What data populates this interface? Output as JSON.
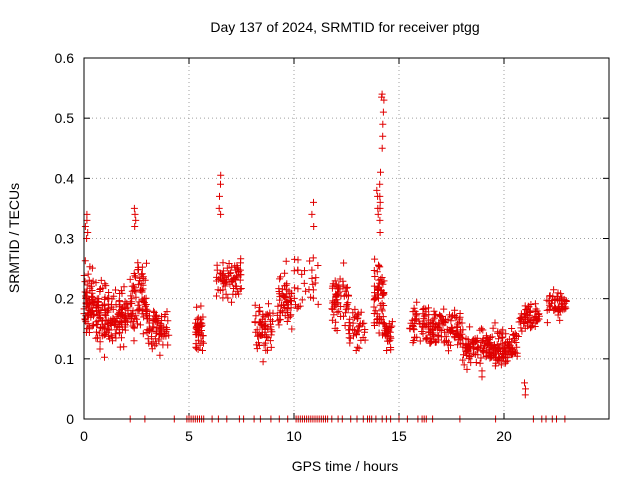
{
  "chart_data": {
    "type": "scatter",
    "title": "Day 137 of 2024, SRMTID for receiver ptgg",
    "xlabel": "GPS time / hours",
    "ylabel": "SRMTID / TECUs",
    "xlim": [
      0,
      25
    ],
    "ylim": [
      0,
      0.6
    ],
    "xticks": [
      0,
      5,
      10,
      15,
      20
    ],
    "yticks": [
      0,
      0.1,
      0.2,
      0.3,
      0.4,
      0.5,
      0.6
    ],
    "ytick_labels": [
      "0",
      "0.1",
      "0.2",
      "0.3",
      "0.4",
      "0.5",
      "0.6"
    ],
    "grid": true,
    "marker": "+",
    "color": "#e00000",
    "clusters": [
      {
        "x_range": [
          0.0,
          0.5
        ],
        "y_center": 0.19,
        "y_spread": 0.09,
        "count": 70
      },
      {
        "x_range": [
          0.5,
          1.3
        ],
        "y_center": 0.17,
        "y_spread": 0.08,
        "count": 80
      },
      {
        "x_range": [
          1.3,
          2.2
        ],
        "y_center": 0.17,
        "y_spread": 0.07,
        "count": 80
      },
      {
        "x_range": [
          2.2,
          3.0
        ],
        "y_center": 0.2,
        "y_spread": 0.09,
        "count": 80
      },
      {
        "x_range": [
          3.0,
          4.1
        ],
        "y_center": 0.15,
        "y_spread": 0.05,
        "count": 70
      },
      {
        "x_range": [
          5.3,
          5.7
        ],
        "y_center": 0.15,
        "y_spread": 0.06,
        "count": 45
      },
      {
        "x_range": [
          6.3,
          7.5
        ],
        "y_center": 0.23,
        "y_spread": 0.06,
        "count": 70
      },
      {
        "x_range": [
          8.1,
          9.0
        ],
        "y_center": 0.15,
        "y_spread": 0.06,
        "count": 60
      },
      {
        "x_range": [
          9.2,
          9.9
        ],
        "y_center": 0.2,
        "y_spread": 0.07,
        "count": 55
      },
      {
        "x_range": [
          10.0,
          11.2
        ],
        "y_center": 0.22,
        "y_spread": 0.07,
        "count": 30
      },
      {
        "x_range": [
          11.8,
          12.6
        ],
        "y_center": 0.2,
        "y_spread": 0.07,
        "count": 60
      },
      {
        "x_range": [
          12.6,
          13.4
        ],
        "y_center": 0.15,
        "y_spread": 0.06,
        "count": 40
      },
      {
        "x_range": [
          13.8,
          14.3
        ],
        "y_center": 0.2,
        "y_spread": 0.1,
        "count": 60
      },
      {
        "x_range": [
          14.3,
          14.7
        ],
        "y_center": 0.14,
        "y_spread": 0.05,
        "count": 30
      },
      {
        "x_range": [
          15.5,
          16.5
        ],
        "y_center": 0.16,
        "y_spread": 0.06,
        "count": 60
      },
      {
        "x_range": [
          16.5,
          18.0
        ],
        "y_center": 0.15,
        "y_spread": 0.05,
        "count": 100
      },
      {
        "x_range": [
          18.0,
          19.5
        ],
        "y_center": 0.12,
        "y_spread": 0.045,
        "count": 110
      },
      {
        "x_range": [
          19.5,
          20.7
        ],
        "y_center": 0.12,
        "y_spread": 0.045,
        "count": 100
      },
      {
        "x_range": [
          20.7,
          21.7
        ],
        "y_center": 0.17,
        "y_spread": 0.04,
        "count": 60
      },
      {
        "x_range": [
          22.0,
          23.0
        ],
        "y_center": 0.19,
        "y_spread": 0.04,
        "count": 50
      }
    ],
    "peaks": [
      {
        "x": 14.23,
        "y_values": [
          0.54,
          0.535,
          0.53,
          0.51,
          0.49,
          0.47,
          0.45
        ]
      },
      {
        "x": 14.1,
        "y_values": [
          0.41,
          0.39,
          0.37,
          0.36,
          0.35,
          0.33,
          0.31
        ]
      },
      {
        "x": 13.95,
        "y_values": [
          0.38,
          0.37,
          0.35,
          0.34
        ]
      },
      {
        "x": 6.45,
        "y_values": [
          0.405,
          0.39,
          0.37,
          0.35,
          0.34
        ]
      },
      {
        "x": 0.12,
        "y_values": [
          0.34,
          0.33,
          0.32,
          0.31,
          0.3
        ]
      },
      {
        "x": 2.45,
        "y_values": [
          0.35,
          0.34,
          0.33,
          0.32
        ]
      },
      {
        "x": 10.9,
        "y_values": [
          0.36,
          0.34,
          0.32
        ]
      },
      {
        "x": 21.0,
        "y_values": [
          0.04,
          0.05,
          0.06
        ]
      },
      {
        "x": 18.9,
        "y_values": [
          0.07,
          0.08
        ]
      }
    ],
    "zero_points": [
      2.2,
      2.9,
      4.3,
      4.9,
      5.0,
      5.1,
      5.2,
      5.3,
      5.4,
      5.5,
      5.6,
      5.7,
      6.1,
      6.4,
      6.8,
      7.4,
      7.6,
      8.1,
      8.4,
      8.9,
      9.3,
      9.7,
      10.1,
      10.2,
      10.3,
      10.4,
      10.5,
      10.6,
      10.7,
      10.8,
      10.9,
      11.0,
      11.1,
      11.2,
      11.3,
      11.4,
      11.5,
      11.6,
      11.8,
      12.1,
      12.3,
      12.7,
      13.0,
      13.3,
      13.5,
      13.6,
      13.7,
      13.9,
      14.2,
      14.4,
      14.6,
      15.0,
      15.4,
      15.9,
      16.1,
      16.2,
      16.3,
      16.6,
      17.9,
      19.6,
      21.4,
      21.8,
      22.0,
      22.3,
      22.5,
      22.9
    ],
    "seed": 137
  }
}
